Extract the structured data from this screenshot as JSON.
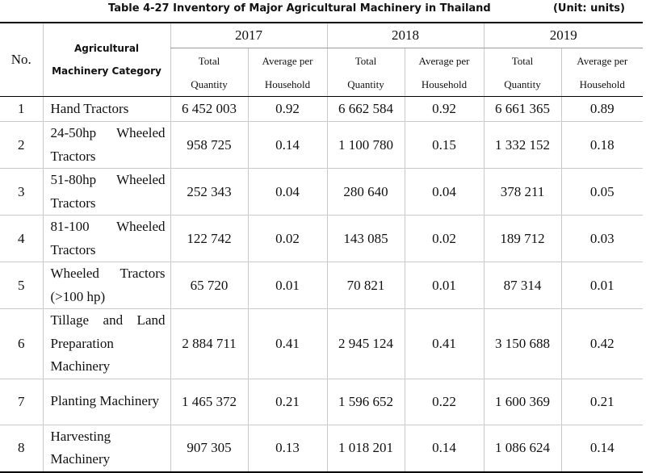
{
  "title": "Table 4-27 Inventory of Major Agricultural Machinery in Thailand",
  "unit": "(Unit: units)",
  "headers": {
    "no": "No.",
    "category_line1": "Agricultural",
    "category_line2": "Machinery Category",
    "years": [
      "2017",
      "2018",
      "2019"
    ],
    "total_line1": "Total",
    "total_line2": "Quantity",
    "avg_line1": "Average per",
    "avg_line2": "Household"
  },
  "rows": [
    {
      "no": "1",
      "category": "Hand Tractors",
      "total_2017": "6 452 003",
      "avg_2017": "0.92",
      "total_2018": "6 662 584",
      "avg_2018": "0.92",
      "total_2019": "6 661 365",
      "avg_2019": "0.89"
    },
    {
      "no": "2",
      "category": "24-50hp Wheeled Tractors",
      "total_2017": "958 725",
      "avg_2017": "0.14",
      "total_2018": "1 100 780",
      "avg_2018": "0.15",
      "total_2019": "1 332 152",
      "avg_2019": "0.18"
    },
    {
      "no": "3",
      "category": "51-80hp Wheeled Tractors",
      "total_2017": "252 343",
      "avg_2017": "0.04",
      "total_2018": "280 640",
      "avg_2018": "0.04",
      "total_2019": "378 211",
      "avg_2019": "0.05"
    },
    {
      "no": "4",
      "category": "81-100 Wheeled Tractors",
      "total_2017": "122 742",
      "avg_2017": "0.02",
      "total_2018": "143 085",
      "avg_2018": "0.02",
      "total_2019": "189 712",
      "avg_2019": "0.03"
    },
    {
      "no": "5",
      "category": "Wheeled Tractors (>100 hp)",
      "total_2017": "65 720",
      "avg_2017": "0.01",
      "total_2018": "70 821",
      "avg_2018": "0.01",
      "total_2019": "87 314",
      "avg_2019": "0.01"
    },
    {
      "no": "6",
      "category": "Tillage and Land Preparation Machinery",
      "total_2017": "2 884 711",
      "avg_2017": "0.41",
      "total_2018": "2 945 124",
      "avg_2018": "0.41",
      "total_2019": "3 150 688",
      "avg_2019": "0.42"
    },
    {
      "no": "7",
      "category": "Planting Machinery",
      "total_2017": "1 465 372",
      "avg_2017": "0.21",
      "total_2018": "1 596 652",
      "avg_2018": "0.22",
      "total_2019": "1 600 369",
      "avg_2019": "0.21"
    },
    {
      "no": "8",
      "category": "Harvesting Machinery",
      "total_2017": "907 305",
      "avg_2017": "0.13",
      "total_2018": "1 018 201",
      "avg_2018": "0.14",
      "total_2019": "1 086 624",
      "avg_2019": "0.14"
    }
  ]
}
